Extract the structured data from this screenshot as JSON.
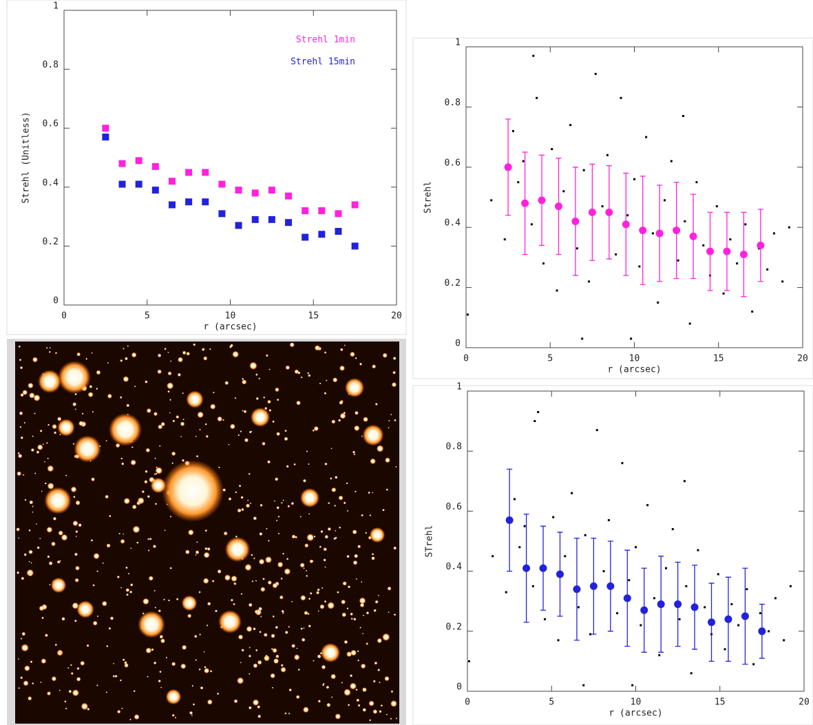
{
  "chart_data": [
    {
      "type": "scatter",
      "xlabel": "r (arcsec)",
      "ylabel": "Strehl (Unitless)",
      "xlim": [
        0,
        20
      ],
      "ylim": [
        0,
        1
      ],
      "xticks": [
        0,
        5,
        10,
        15,
        20
      ],
      "yticks": [
        0,
        0.2,
        0.4,
        0.6,
        0.8,
        1
      ],
      "series": [
        {
          "name": "Strehl 1min",
          "color": "#ff22dd",
          "marker": "square",
          "x": [
            2.5,
            3.5,
            4.5,
            5.5,
            6.5,
            7.5,
            8.5,
            9.5,
            10.5,
            11.5,
            12.5,
            13.5,
            14.5,
            15.5,
            16.5,
            17.5
          ],
          "values": [
            0.6,
            0.48,
            0.49,
            0.47,
            0.42,
            0.45,
            0.45,
            0.41,
            0.39,
            0.38,
            0.39,
            0.37,
            0.32,
            0.32,
            0.31,
            0.34
          ]
        },
        {
          "name": "Strehl 15min",
          "color": "#2222dd",
          "marker": "square",
          "x": [
            2.5,
            3.5,
            4.5,
            5.5,
            6.5,
            7.5,
            8.5,
            9.5,
            10.5,
            11.5,
            12.5,
            13.5,
            14.5,
            15.5,
            16.5,
            17.5
          ],
          "values": [
            0.57,
            0.41,
            0.41,
            0.39,
            0.34,
            0.35,
            0.35,
            0.31,
            0.27,
            0.29,
            0.29,
            0.28,
            0.23,
            0.24,
            0.25,
            0.2
          ]
        }
      ]
    },
    {
      "type": "scatter",
      "xlabel": "r (arcsec)",
      "ylabel": "Strehl",
      "xlim": [
        0,
        20
      ],
      "ylim": [
        0,
        1
      ],
      "xticks": [
        0,
        5,
        10,
        15,
        20
      ],
      "yticks": [
        0,
        0.2,
        0.4,
        0.6,
        0.8,
        1
      ],
      "series": [
        {
          "color": "#000000",
          "marker": "dot",
          "x": [
            2.3,
            2.8,
            3.1,
            3.4,
            3.9,
            4.2,
            4.6,
            5.1,
            5.4,
            5.8,
            6.2,
            6.6,
            7.0,
            7.3,
            7.7,
            8.1,
            8.4,
            8.9,
            9.2,
            9.6,
            10.0,
            10.3,
            10.7,
            11.1,
            11.4,
            11.8,
            12.2,
            12.6,
            13.0,
            13.3,
            13.7,
            14.1,
            14.5,
            14.9,
            15.3,
            15.7,
            16.1,
            16.6,
            17.0,
            17.4,
            17.9,
            18.3,
            18.8,
            19.2,
            1.5,
            0.1,
            4.0,
            9.8,
            12.9,
            6.9
          ],
          "values": [
            0.36,
            0.72,
            0.55,
            0.62,
            0.41,
            0.83,
            0.28,
            0.66,
            0.19,
            0.52,
            0.74,
            0.33,
            0.59,
            0.22,
            0.91,
            0.47,
            0.64,
            0.31,
            0.83,
            0.44,
            0.56,
            0.27,
            0.7,
            0.38,
            0.15,
            0.49,
            0.62,
            0.29,
            0.42,
            0.08,
            0.55,
            0.34,
            0.24,
            0.47,
            0.18,
            0.36,
            0.28,
            0.41,
            0.12,
            0.33,
            0.26,
            0.38,
            0.22,
            0.4,
            0.49,
            0.11,
            0.97,
            0.03,
            0.77,
            0.03
          ]
        },
        {
          "color": "#ff22dd",
          "marker": "circle",
          "x": [
            2.5,
            3.5,
            4.5,
            5.5,
            6.5,
            7.5,
            8.5,
            9.5,
            10.5,
            11.5,
            12.5,
            13.5,
            14.5,
            15.5,
            16.5,
            17.5
          ],
          "values": [
            0.6,
            0.48,
            0.49,
            0.47,
            0.42,
            0.45,
            0.45,
            0.41,
            0.39,
            0.38,
            0.39,
            0.37,
            0.32,
            0.32,
            0.31,
            0.34
          ],
          "errors": [
            0.16,
            0.17,
            0.15,
            0.16,
            0.18,
            0.16,
            0.155,
            0.17,
            0.18,
            0.16,
            0.16,
            0.14,
            0.13,
            0.13,
            0.14,
            0.12
          ]
        }
      ]
    },
    {
      "type": "scatter",
      "xlabel": "r (arcsec)",
      "ylabel": "STrehl",
      "xlim": [
        0,
        20
      ],
      "ylim": [
        0,
        1
      ],
      "xticks": [
        0,
        5,
        10,
        15,
        20
      ],
      "yticks": [
        0,
        0.2,
        0.4,
        0.6,
        0.8,
        1
      ],
      "series": [
        {
          "color": "#000000",
          "marker": "dot",
          "x": [
            2.3,
            2.8,
            3.1,
            3.4,
            3.9,
            4.2,
            4.6,
            5.1,
            5.4,
            5.8,
            6.2,
            6.6,
            7.0,
            7.3,
            7.7,
            8.1,
            8.4,
            8.9,
            9.2,
            9.6,
            10.0,
            10.3,
            10.7,
            11.1,
            11.4,
            11.8,
            12.2,
            12.6,
            13.0,
            13.3,
            13.7,
            14.1,
            14.5,
            14.9,
            15.3,
            15.7,
            16.1,
            16.6,
            17.0,
            17.4,
            17.9,
            18.3,
            18.8,
            19.2,
            1.5,
            0.1,
            4.0,
            9.8,
            12.9,
            6.9
          ],
          "values": [
            0.33,
            0.64,
            0.48,
            0.55,
            0.35,
            0.93,
            0.24,
            0.58,
            0.17,
            0.45,
            0.66,
            0.28,
            0.52,
            0.19,
            0.87,
            0.4,
            0.57,
            0.26,
            0.76,
            0.37,
            0.48,
            0.22,
            0.62,
            0.31,
            0.12,
            0.41,
            0.54,
            0.24,
            0.35,
            0.06,
            0.47,
            0.28,
            0.19,
            0.39,
            0.14,
            0.29,
            0.22,
            0.34,
            0.09,
            0.26,
            0.2,
            0.31,
            0.17,
            0.35,
            0.45,
            0.1,
            0.9,
            0.02,
            0.7,
            0.02
          ]
        },
        {
          "color": "#2222dd",
          "marker": "circle",
          "x": [
            2.5,
            3.5,
            4.5,
            5.5,
            6.5,
            7.5,
            8.5,
            9.5,
            10.5,
            11.5,
            12.5,
            13.5,
            14.5,
            15.5,
            16.5,
            17.5
          ],
          "values": [
            0.57,
            0.41,
            0.41,
            0.39,
            0.34,
            0.35,
            0.35,
            0.31,
            0.27,
            0.29,
            0.29,
            0.28,
            0.23,
            0.24,
            0.25,
            0.2
          ],
          "errors": [
            0.17,
            0.18,
            0.14,
            0.14,
            0.17,
            0.16,
            0.15,
            0.16,
            0.14,
            0.16,
            0.14,
            0.14,
            0.13,
            0.14,
            0.16,
            0.09
          ]
        }
      ]
    }
  ]
}
